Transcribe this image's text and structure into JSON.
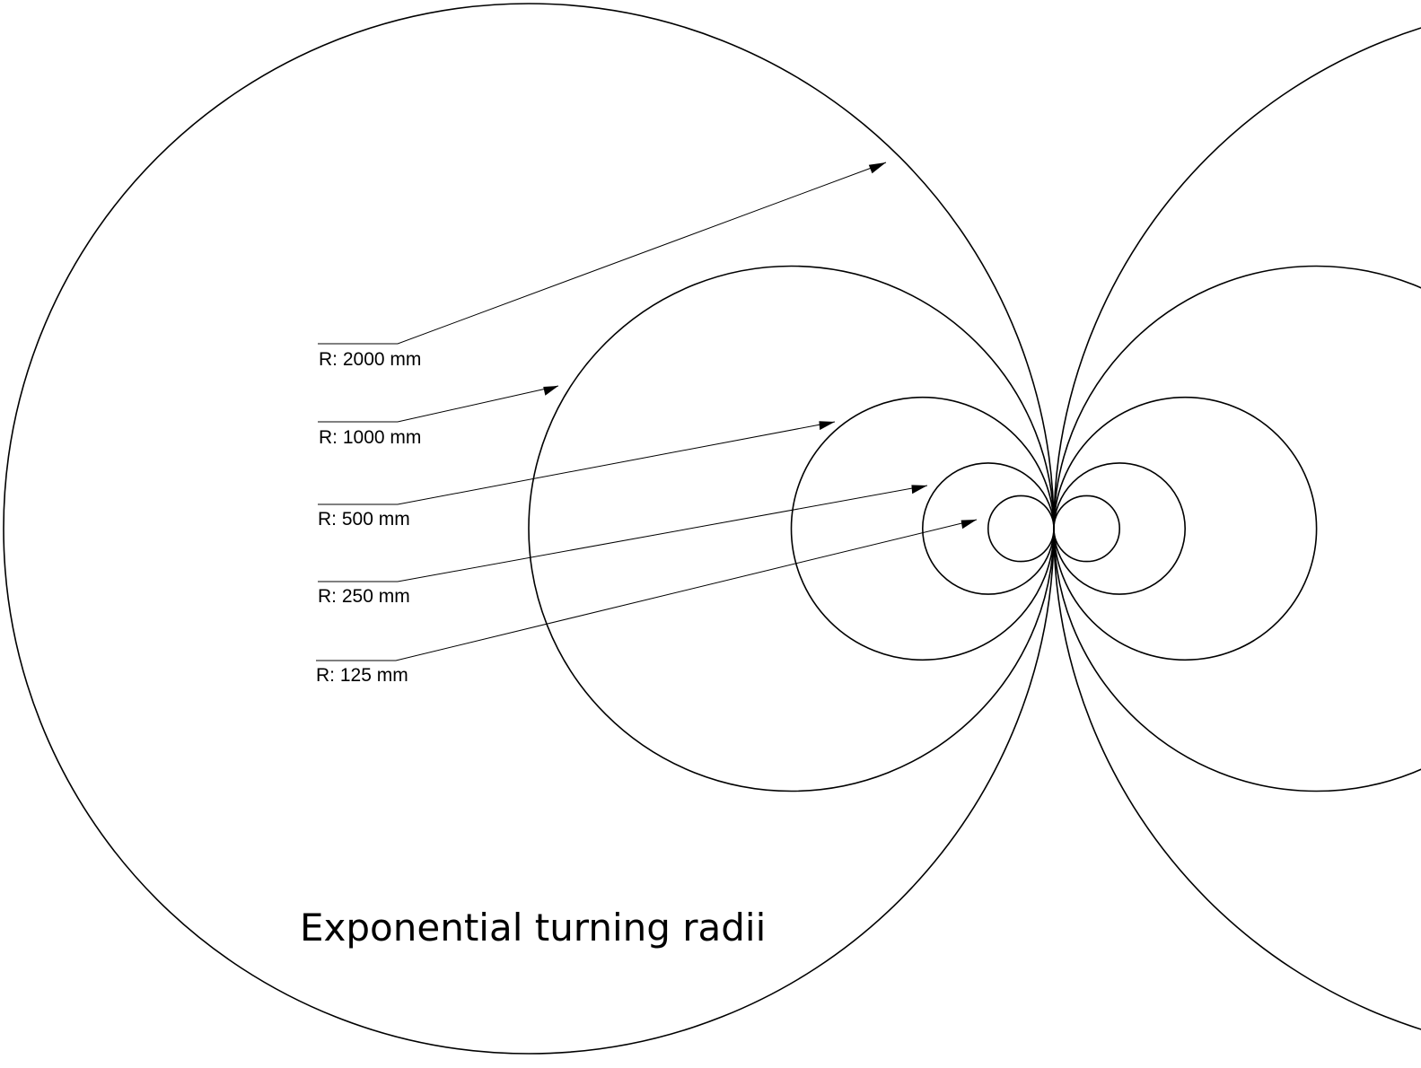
{
  "diagram": {
    "title": "Exponential turning radii",
    "tangent_point": "shared tangent point between left and right circle families",
    "circles": [
      {
        "side": "left",
        "radius_mm": 2000
      },
      {
        "side": "left",
        "radius_mm": 1000
      },
      {
        "side": "left",
        "radius_mm": 500
      },
      {
        "side": "left",
        "radius_mm": 250
      },
      {
        "side": "left",
        "radius_mm": 125
      },
      {
        "side": "right",
        "radius_mm": 2000
      },
      {
        "side": "right",
        "radius_mm": 1000
      },
      {
        "side": "right",
        "radius_mm": 500
      },
      {
        "side": "right",
        "radius_mm": 250
      },
      {
        "side": "right",
        "radius_mm": 125
      }
    ],
    "labels": [
      {
        "text": "R: 2000 mm",
        "radius_mm": 2000
      },
      {
        "text": "R: 1000 mm",
        "radius_mm": 1000
      },
      {
        "text": "R: 500 mm",
        "radius_mm": 500
      },
      {
        "text": "R: 250 mm",
        "radius_mm": 250
      },
      {
        "text": "R: 125 mm",
        "radius_mm": 125
      }
    ]
  }
}
